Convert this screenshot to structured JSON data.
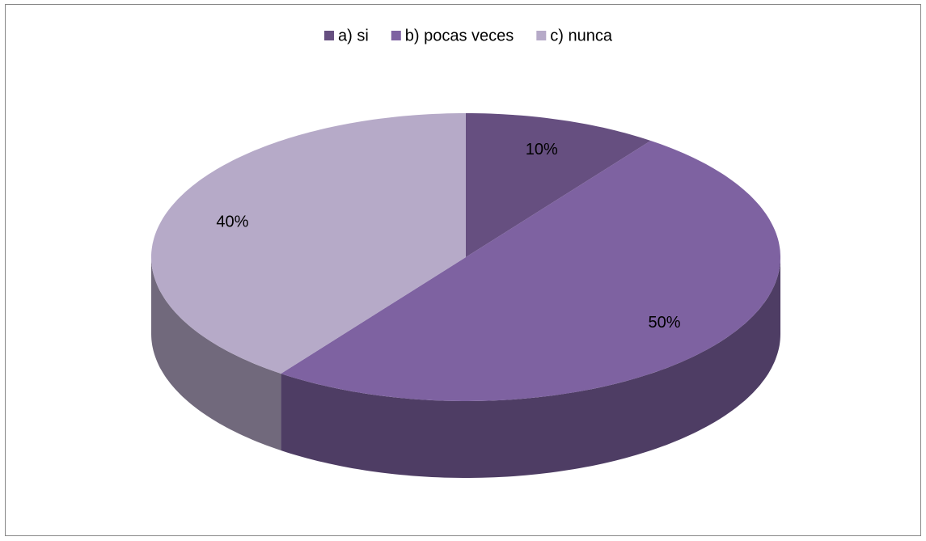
{
  "chart_data": {
    "type": "pie",
    "categories": [
      "a) si",
      "b) pocas veces",
      "c) nunca"
    ],
    "values": [
      10,
      50,
      40
    ],
    "value_labels": [
      "10%",
      "50%",
      "40%"
    ],
    "colors": [
      "#664f80",
      "#7e62a1",
      "#b6aac8"
    ],
    "legend": "top"
  }
}
